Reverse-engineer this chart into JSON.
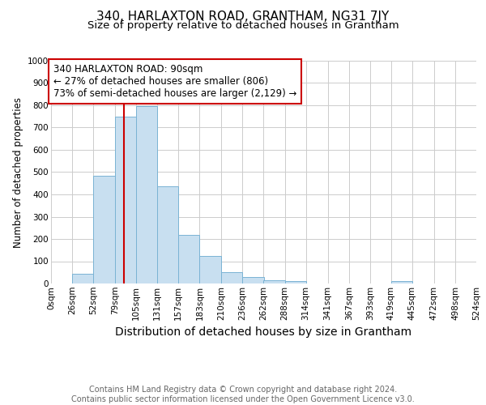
{
  "title": "340, HARLAXTON ROAD, GRANTHAM, NG31 7JY",
  "subtitle": "Size of property relative to detached houses in Grantham",
  "xlabel": "Distribution of detached houses by size in Grantham",
  "ylabel": "Number of detached properties",
  "bin_edges": [
    0,
    26,
    52,
    79,
    105,
    131,
    157,
    183,
    210,
    236,
    262,
    288,
    314,
    341,
    367,
    393,
    419,
    445,
    472,
    498,
    524
  ],
  "bar_heights": [
    0,
    45,
    485,
    748,
    795,
    435,
    220,
    125,
    50,
    30,
    15,
    10,
    0,
    0,
    0,
    0,
    10,
    0,
    0,
    0
  ],
  "bar_color": "#c8dff0",
  "bar_edgecolor": "#7ab3d4",
  "property_size": 90,
  "red_line_color": "#cc0000",
  "annotation_line1": "340 HARLAXTON ROAD: 90sqm",
  "annotation_line2": "← 27% of detached houses are smaller (806)",
  "annotation_line3": "73% of semi-detached houses are larger (2,129) →",
  "annotation_box_color": "#ffffff",
  "annotation_box_edgecolor": "#cc0000",
  "ylim": [
    0,
    1000
  ],
  "xlim": [
    0,
    524
  ],
  "tick_labels": [
    "0sqm",
    "26sqm",
    "52sqm",
    "79sqm",
    "105sqm",
    "131sqm",
    "157sqm",
    "183sqm",
    "210sqm",
    "236sqm",
    "262sqm",
    "288sqm",
    "314sqm",
    "341sqm",
    "367sqm",
    "393sqm",
    "419sqm",
    "445sqm",
    "472sqm",
    "498sqm",
    "524sqm"
  ],
  "tick_positions": [
    0,
    26,
    52,
    79,
    105,
    131,
    157,
    183,
    210,
    236,
    262,
    288,
    314,
    341,
    367,
    393,
    419,
    445,
    472,
    498,
    524
  ],
  "ytick_labels": [
    "0",
    "100",
    "200",
    "300",
    "400",
    "500",
    "600",
    "700",
    "800",
    "900",
    "1000"
  ],
  "ytick_positions": [
    0,
    100,
    200,
    300,
    400,
    500,
    600,
    700,
    800,
    900,
    1000
  ],
  "footer_text": "Contains HM Land Registry data © Crown copyright and database right 2024.\nContains public sector information licensed under the Open Government Licence v3.0.",
  "title_fontsize": 11,
  "subtitle_fontsize": 9.5,
  "xlabel_fontsize": 10,
  "ylabel_fontsize": 8.5,
  "tick_fontsize": 7.5,
  "annotation_fontsize": 8.5,
  "footer_fontsize": 7,
  "grid_color": "#cccccc",
  "background_color": "#ffffff"
}
